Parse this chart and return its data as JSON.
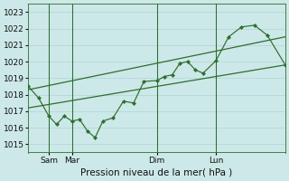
{
  "background_color": "#cde8e8",
  "grid_color": "#b0d4d4",
  "line_color": "#2d6e2d",
  "xlabel": "Pression niveau de la mer( hPa )",
  "ylim": [
    1014.5,
    1023.5
  ],
  "yticks": [
    1015,
    1016,
    1017,
    1018,
    1019,
    1020,
    1021,
    1022,
    1023
  ],
  "day_labels": [
    "Sam",
    "Mar",
    "Dim",
    "Lun"
  ],
  "day_positions": [
    8,
    17,
    50,
    73
  ],
  "vline_positions": [
    8,
    17,
    50,
    73
  ],
  "xlim": [
    0,
    100
  ],
  "series1_x": [
    0,
    4,
    8,
    11,
    14,
    17,
    20,
    23,
    26,
    29,
    33,
    37,
    41,
    45,
    50,
    53,
    56,
    59,
    62,
    65,
    68,
    73,
    78,
    83,
    88,
    93,
    100
  ],
  "series1_y": [
    1018.5,
    1017.8,
    1016.7,
    1016.2,
    1016.7,
    1016.4,
    1016.5,
    1015.8,
    1015.4,
    1016.4,
    1016.6,
    1017.6,
    1017.5,
    1018.8,
    1018.85,
    1019.1,
    1019.2,
    1019.9,
    1020.0,
    1019.5,
    1019.3,
    1020.05,
    1021.5,
    1022.1,
    1022.2,
    1021.6,
    1019.8
  ],
  "series2_x": [
    0,
    100
  ],
  "series2_y": [
    1018.3,
    1021.5
  ],
  "series3_x": [
    0,
    100
  ],
  "series3_y": [
    1017.2,
    1019.8
  ]
}
